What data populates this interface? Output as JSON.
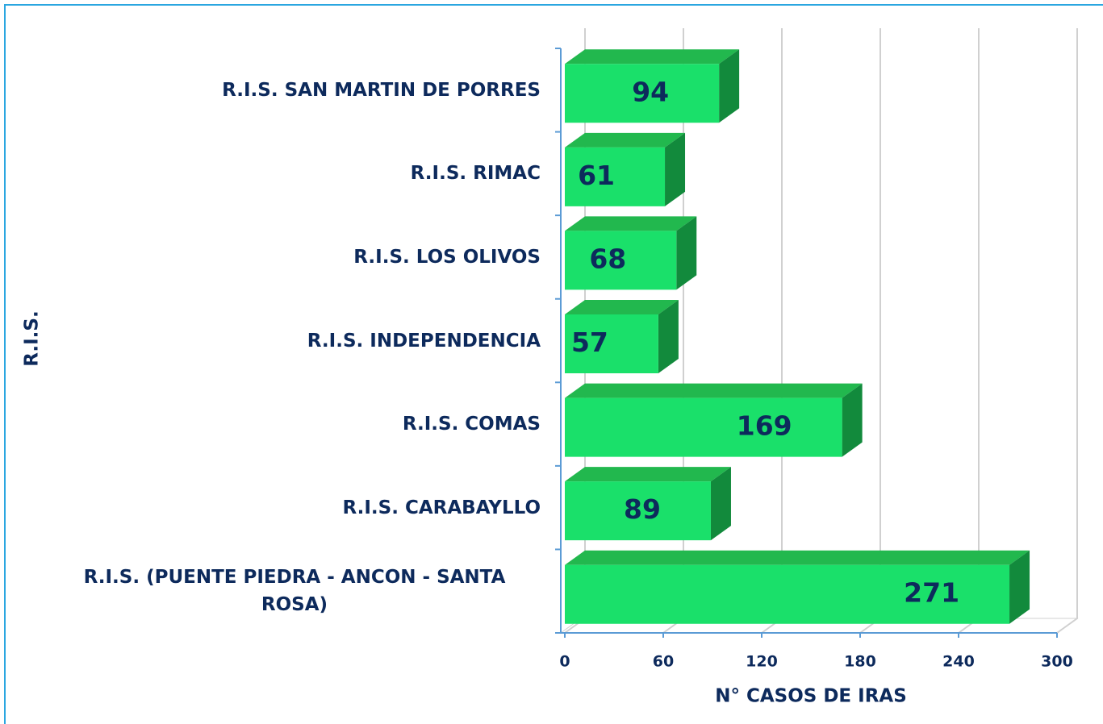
{
  "chart_data": {
    "type": "bar",
    "orientation": "horizontal",
    "x_label": "N° CASOS DE IRAS",
    "y_label": "R.I.S.",
    "categories": [
      "R.I.S. SAN MARTIN DE PORRES",
      "R.I.S. RIMAC",
      "R.I.S. LOS OLIVOS",
      "R.I.S. INDEPENDENCIA",
      "R.I.S. COMAS",
      "R.I.S. CARABAYLLO",
      "R.I.S. (PUENTE PIEDRA - ANCON - SANTA ROSA)"
    ],
    "values": [
      94,
      61,
      68,
      57,
      169,
      89,
      271
    ],
    "color": "#1ae06a",
    "xlim": [
      0,
      300
    ],
    "xticks": [
      0,
      60,
      120,
      180,
      240,
      300
    ],
    "grid": true
  }
}
